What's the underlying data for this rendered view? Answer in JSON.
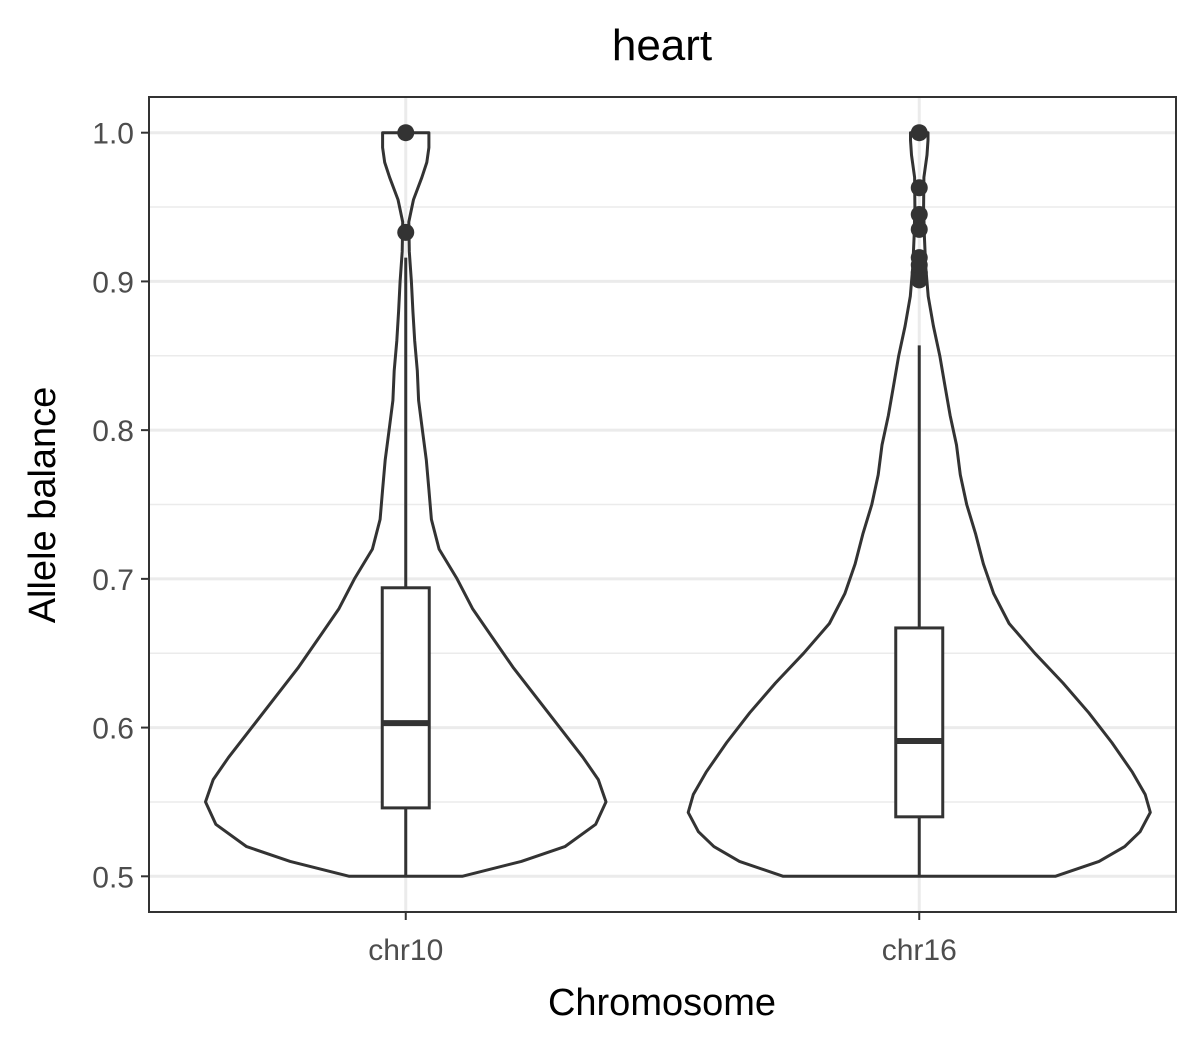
{
  "chart_data": {
    "type": "violin",
    "title": "heart",
    "xlabel": "Chromosome",
    "ylabel": "Allele balance",
    "categories": [
      "chr10",
      "chr16"
    ],
    "ylim": [
      0.476,
      1.024
    ],
    "yticks": [
      0.5,
      0.6,
      0.7,
      0.8,
      0.9,
      1.0
    ],
    "ytick_labels": [
      "0.5",
      "0.6",
      "0.7",
      "0.8",
      "0.9",
      "1.0"
    ],
    "grid": true,
    "series": [
      {
        "category": "chr10",
        "violin_profile": [
          [
            0.5,
            0.22
          ],
          [
            0.51,
            0.45
          ],
          [
            0.52,
            0.62
          ],
          [
            0.535,
            0.74
          ],
          [
            0.55,
            0.78
          ],
          [
            0.565,
            0.75
          ],
          [
            0.58,
            0.69
          ],
          [
            0.6,
            0.6
          ],
          [
            0.62,
            0.51
          ],
          [
            0.64,
            0.42
          ],
          [
            0.66,
            0.34
          ],
          [
            0.68,
            0.26
          ],
          [
            0.7,
            0.2
          ],
          [
            0.72,
            0.13
          ],
          [
            0.74,
            0.1
          ],
          [
            0.76,
            0.09
          ],
          [
            0.78,
            0.08
          ],
          [
            0.8,
            0.065
          ],
          [
            0.82,
            0.05
          ],
          [
            0.84,
            0.045
          ],
          [
            0.86,
            0.035
          ],
          [
            0.88,
            0.028
          ],
          [
            0.9,
            0.022
          ],
          [
            0.92,
            0.014
          ],
          [
            0.94,
            0.012
          ],
          [
            0.955,
            0.03
          ],
          [
            0.97,
            0.063
          ],
          [
            0.98,
            0.082
          ],
          [
            0.99,
            0.09
          ],
          [
            0.995,
            0.09
          ],
          [
            1.0,
            0.09
          ]
        ],
        "box": {
          "q1": 0.546,
          "median": 0.603,
          "q3": 0.694,
          "whisker_low": 0.5,
          "whisker_high": 0.916
        },
        "outliers": [
          0.933,
          1.0
        ]
      },
      {
        "category": "chr16",
        "violin_profile": [
          [
            0.5,
            0.53
          ],
          [
            0.51,
            0.7
          ],
          [
            0.52,
            0.8
          ],
          [
            0.53,
            0.86
          ],
          [
            0.543,
            0.9
          ],
          [
            0.555,
            0.88
          ],
          [
            0.57,
            0.83
          ],
          [
            0.59,
            0.75
          ],
          [
            0.61,
            0.66
          ],
          [
            0.63,
            0.56
          ],
          [
            0.65,
            0.45
          ],
          [
            0.67,
            0.35
          ],
          [
            0.69,
            0.29
          ],
          [
            0.71,
            0.25
          ],
          [
            0.73,
            0.22
          ],
          [
            0.75,
            0.185
          ],
          [
            0.77,
            0.16
          ],
          [
            0.79,
            0.145
          ],
          [
            0.81,
            0.12
          ],
          [
            0.83,
            0.1
          ],
          [
            0.85,
            0.08
          ],
          [
            0.87,
            0.055
          ],
          [
            0.89,
            0.035
          ],
          [
            0.91,
            0.025
          ],
          [
            0.93,
            0.02
          ],
          [
            0.95,
            0.017
          ],
          [
            0.97,
            0.018
          ],
          [
            0.985,
            0.03
          ],
          [
            0.995,
            0.034
          ],
          [
            1.0,
            0.034
          ]
        ],
        "box": {
          "q1": 0.54,
          "median": 0.591,
          "q3": 0.667,
          "whisker_low": 0.5,
          "whisker_high": 0.857
        },
        "outliers": [
          0.901,
          0.906,
          0.911,
          0.916,
          0.935,
          0.945,
          0.963,
          1.0
        ]
      }
    ],
    "colors": {
      "stroke": "#333333",
      "grid": "#ebebeb",
      "panel_border": "#333333",
      "background": "#ffffff"
    }
  }
}
